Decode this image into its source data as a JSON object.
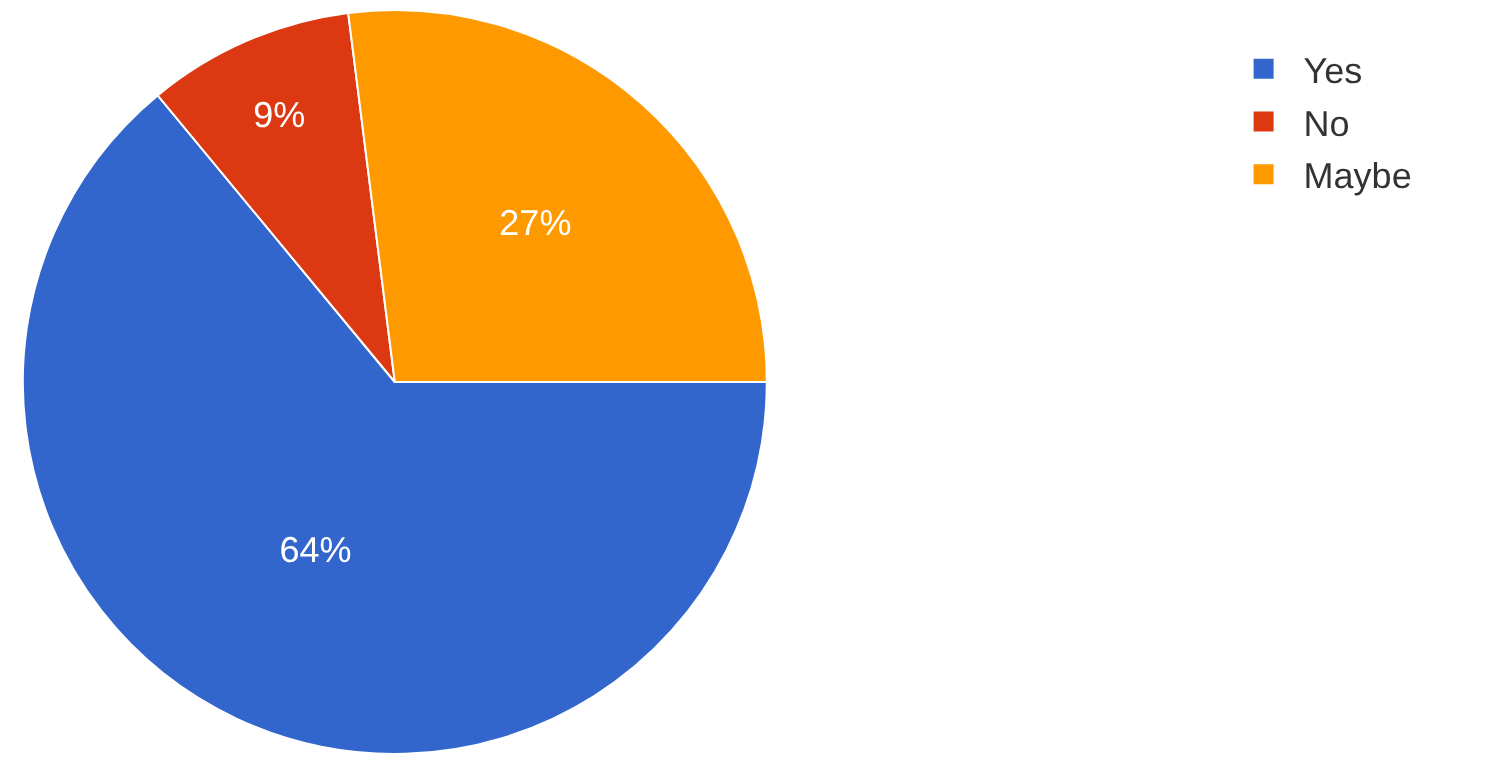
{
  "chart_data": {
    "type": "pie",
    "categories": [
      "Yes",
      "No",
      "Maybe"
    ],
    "values": [
      64,
      9,
      27
    ],
    "colors": [
      "#3366cc",
      "#dc3912",
      "#ff9900"
    ],
    "value_labels": [
      "64%",
      "9%",
      "27%"
    ],
    "legend": "top right"
  }
}
